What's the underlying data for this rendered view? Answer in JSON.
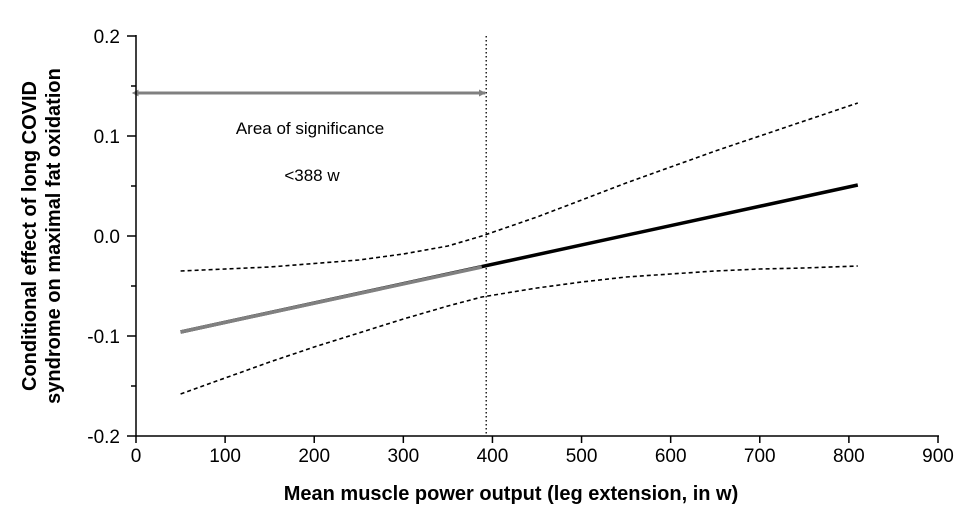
{
  "chart_data": {
    "type": "line",
    "title": "",
    "xlabel": "Mean muscle power output (leg extension, in w)",
    "ylabel_lines": [
      "Conditional effect of long COVID",
      "syndrome on maximal fat oxidation"
    ],
    "xlim": [
      0,
      900
    ],
    "ylim": [
      -0.2,
      0.2
    ],
    "x_ticks": [
      0,
      100,
      200,
      300,
      400,
      500,
      600,
      700,
      800,
      900
    ],
    "y_ticks": [
      -0.2,
      -0.1,
      0.0,
      0.1,
      0.2
    ],
    "y_tick_labels": [
      "-0.2",
      "-0.1",
      "0.0",
      "0.1",
      "0.2"
    ],
    "grid": false,
    "series": [
      {
        "role": "estimate",
        "style": "solid",
        "color": "#000000",
        "x": [
          50,
          810
        ],
        "y": [
          -0.096,
          0.051
        ]
      },
      {
        "role": "estimate-significant",
        "style": "solid",
        "color": "#808080",
        "x": [
          50,
          388
        ],
        "y": [
          -0.096,
          -0.031
        ]
      },
      {
        "role": "upper-ci",
        "style": "dashed",
        "color": "#000000",
        "x": [
          50,
          150,
          250,
          300,
          350,
          388,
          450,
          500,
          550,
          600,
          650,
          700,
          750,
          810
        ],
        "y": [
          -0.035,
          -0.031,
          -0.024,
          -0.018,
          -0.01,
          0.0,
          0.019,
          0.036,
          0.053,
          0.069,
          0.085,
          0.1,
          0.115,
          0.133
        ]
      },
      {
        "role": "lower-ci",
        "style": "dashed",
        "color": "#000000",
        "x": [
          50,
          100,
          150,
          200,
          250,
          300,
          350,
          388,
          450,
          500,
          550,
          600,
          650,
          700,
          750,
          810
        ],
        "y": [
          -0.158,
          -0.142,
          -0.126,
          -0.111,
          -0.097,
          -0.083,
          -0.07,
          -0.061,
          -0.052,
          -0.046,
          -0.041,
          -0.038,
          -0.035,
          -0.033,
          -0.032,
          -0.03
        ]
      }
    ],
    "threshold": {
      "x": 393,
      "style": "dotted"
    },
    "annotation": {
      "label": "Area of significance",
      "sublabel": "<388 w",
      "arrow_from_x": 0,
      "arrow_to_x": 393,
      "arrow_y": 0.143,
      "color": "#808080"
    }
  }
}
